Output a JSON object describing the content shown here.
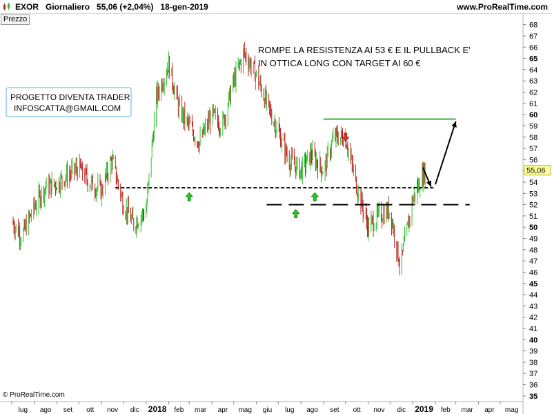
{
  "header": {
    "title": "EXOR   Giornaliero   55,06 (+2,04%)   18-gen-2019",
    "site": "www.ProRealTime.com"
  },
  "panel_label": "Prezzo",
  "footer": {
    "source": "© ProRealTime.com"
  },
  "colors": {
    "up_bar": "#2fbf2f",
    "down_bar": "#c02020",
    "resistance_line": "#000000",
    "target_line": "#33b533",
    "arrow_up": "#22cc22",
    "arrow_down": "#dd3333",
    "price_tag_bg": "#ffff99",
    "note_border": "#5bb0e0"
  },
  "chart_data": {
    "type": "line",
    "title": "",
    "xlabel": "",
    "ylabel": "",
    "ylim": [
      34.5,
      69
    ],
    "y_ticks": [
      35,
      36,
      37,
      38,
      39,
      40,
      41,
      42,
      43,
      44,
      45,
      46,
      47,
      48,
      49,
      50,
      51,
      52,
      53,
      54,
      55,
      56,
      57,
      58,
      59,
      60,
      61,
      62,
      63,
      64,
      65,
      66,
      67,
      68
    ],
    "y_bold_ticks": [
      35,
      40,
      45,
      50,
      55,
      60,
      65
    ],
    "last_price_label": "55,06",
    "x_labels": [
      "lug",
      "ago",
      "set",
      "ott",
      "nov",
      "dic",
      "2018",
      "feb",
      "mar",
      "apr",
      "mag",
      "giu",
      "lug",
      "ago",
      "set",
      "ott",
      "nov",
      "dic",
      "2019",
      "feb",
      "mar",
      "apr",
      "mag"
    ],
    "x_bold_labels": [
      "2018",
      "2019"
    ],
    "series": [
      {
        "style": "price_bars",
        "x": [
          "2017-07-01",
          "2017-07-15",
          "2017-08-01",
          "2017-08-15",
          "2017-09-01",
          "2017-09-15",
          "2017-10-01",
          "2017-10-15",
          "2017-11-01",
          "2017-11-15",
          "2017-12-01",
          "2017-12-15",
          "2018-01-01",
          "2018-01-15",
          "2018-02-01",
          "2018-02-15",
          "2018-03-01",
          "2018-03-15",
          "2018-04-01",
          "2018-04-15",
          "2018-05-01",
          "2018-05-15",
          "2018-06-01",
          "2018-06-15",
          "2018-07-01",
          "2018-07-15",
          "2018-08-01",
          "2018-08-15",
          "2018-09-01",
          "2018-09-15",
          "2018-10-01",
          "2018-10-15",
          "2018-11-01",
          "2018-11-15",
          "2018-12-01",
          "2018-12-15",
          "2019-01-01",
          "2019-01-18"
        ],
        "y": [
          50.5,
          49.2,
          51.8,
          53.5,
          53.9,
          54.6,
          55.3,
          54.0,
          53.2,
          56.0,
          52.0,
          50.3,
          51.5,
          61.5,
          64.5,
          60.5,
          59.0,
          57.5,
          60.0,
          59.0,
          63.0,
          65.5,
          63.5,
          61.0,
          58.5,
          56.0,
          55.0,
          56.5,
          55.0,
          58.0,
          58.0,
          54.0,
          50.0,
          51.0,
          51.5,
          46.5,
          52.5,
          55.06
        ]
      }
    ],
    "lines": [
      {
        "name": "resistance",
        "y": 53.5,
        "style": "dashed",
        "from": "2017-11-20",
        "to": "2019-02-01"
      },
      {
        "name": "support",
        "y": 52.0,
        "style": "long-dash",
        "from": "2018-06-15",
        "to": "2019-03-20"
      },
      {
        "name": "target",
        "y": 59.6,
        "style": "solid",
        "from": "2018-09-01",
        "to": "2019-03-01"
      }
    ],
    "signals": [
      {
        "direction": "up",
        "x": "2018-03-01",
        "y": 53.5
      },
      {
        "direction": "up",
        "x": "2018-07-25",
        "y": 52.0
      },
      {
        "direction": "up",
        "x": "2018-08-20",
        "y": 53.5
      },
      {
        "direction": "down",
        "x": "2018-10-01",
        "y": 57.5
      }
    ],
    "arrows": [
      {
        "from": [
          "2019-01-15",
          55.3
        ],
        "to": [
          "2019-01-26",
          53.6
        ]
      },
      {
        "from": [
          "2019-02-01",
          53.8
        ],
        "to": [
          "2019-03-01",
          59.4
        ]
      }
    ],
    "annotations": [
      {
        "kind": "text",
        "lines": [
          "ROMPE LA RESISTENZA AI 53 € E IL PULLBACK E'",
          "IN OTTICA LONG CON TARGET AI 60 €"
        ]
      },
      {
        "kind": "box",
        "lines": [
          "PROGETTO DIVENTA TRADER",
          "INFOSCATTA@GMAIL.COM"
        ]
      }
    ]
  }
}
